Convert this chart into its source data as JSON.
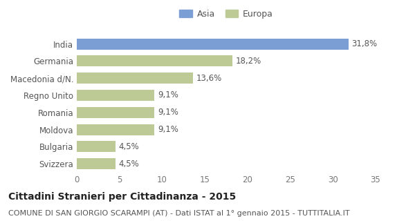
{
  "categories": [
    "India",
    "Germania",
    "Macedonia d/N.",
    "Regno Unito",
    "Romania",
    "Moldova",
    "Bulgaria",
    "Svizzera"
  ],
  "values": [
    31.8,
    18.2,
    13.6,
    9.1,
    9.1,
    9.1,
    4.5,
    4.5
  ],
  "labels": [
    "31,8%",
    "18,2%",
    "13,6%",
    "9,1%",
    "9,1%",
    "9,1%",
    "4,5%",
    "4,5%"
  ],
  "colors": [
    "#7b9fd4",
    "#beca96",
    "#beca96",
    "#beca96",
    "#beca96",
    "#beca96",
    "#beca96",
    "#beca96"
  ],
  "legend_labels": [
    "Asia",
    "Europa"
  ],
  "legend_colors": [
    "#7b9fd4",
    "#beca96"
  ],
  "xlim": [
    0,
    35
  ],
  "xticks": [
    0,
    5,
    10,
    15,
    20,
    25,
    30,
    35
  ],
  "title": "Cittadini Stranieri per Cittadinanza - 2015",
  "subtitle": "COMUNE DI SAN GIORGIO SCARAMPI (AT) - Dati ISTAT al 1° gennaio 2015 - TUTTITALIA.IT",
  "bg_color": "#ffffff",
  "bar_height": 0.65,
  "label_fontsize": 8.5,
  "tick_fontsize": 8.5,
  "title_fontsize": 10,
  "subtitle_fontsize": 8
}
